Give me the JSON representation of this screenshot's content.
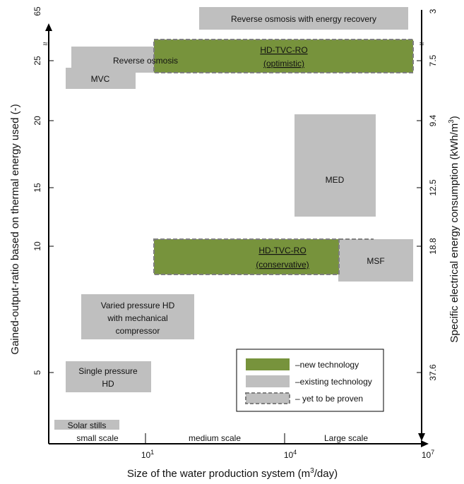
{
  "chart_data": {
    "type": "range-box",
    "x_axis": {
      "title_main": "Size of the water production system (m",
      "title_sup": "3",
      "title_tail": "/day)",
      "tick_bases": [
        "10",
        "10",
        "10"
      ],
      "tick_exps": [
        "1",
        "4",
        "7"
      ],
      "tick_values": [
        1,
        4,
        7
      ]
    },
    "y_left": {
      "title": "Gained-output-ratio based on thermal energy used (-)",
      "ticks": [
        "5",
        "10",
        "15",
        "20",
        "25",
        "65"
      ]
    },
    "y_right": {
      "title_main": "Specific electrical energy consumption (kWh/m",
      "title_sup": "3",
      "title_tail": ")",
      "ticks": [
        "37.6",
        "18.8",
        "12.5",
        "9.4",
        "7.5",
        "3"
      ]
    },
    "axis_break_symbol": "≈",
    "scale_labels": [
      "small scale",
      "medium scale",
      "Large scale"
    ],
    "regions": [
      {
        "id": "ro-er",
        "label": "Reverse osmosis with energy recovery",
        "kind": "existing",
        "x": [
          3.2,
          7.1
        ],
        "gor": [
          65,
          65
        ]
      },
      {
        "id": "ro",
        "label": "Reverse osmosis",
        "kind": "existing",
        "x": [
          -0.5,
          3.2
        ],
        "gor": [
          24.2,
          25.9
        ]
      },
      {
        "id": "mvc",
        "label": "MVC",
        "kind": "existing",
        "x": [
          -0.6,
          0.9
        ],
        "gor": [
          22.5,
          24.1
        ]
      },
      {
        "id": "med",
        "label": "MED",
        "kind": "existing",
        "x": [
          4.6,
          6.2
        ],
        "gor": [
          13.1,
          20.3
        ]
      },
      {
        "id": "msf",
        "label": "MSF",
        "kind": "existing",
        "x": [
          5.5,
          7.1
        ],
        "gor": [
          7.9,
          10.5
        ]
      },
      {
        "id": "vphd",
        "label": "Varied pressure HD with mechanical compressor",
        "kind": "existing",
        "x": [
          -0.3,
          2.7
        ],
        "gor": [
          5.8,
          9.0
        ]
      },
      {
        "id": "sphd",
        "label": "Single pressure HD",
        "kind": "existing",
        "x": [
          -0.6,
          1.4
        ],
        "gor": [
          2.3,
          4.5
        ]
      },
      {
        "id": "solar",
        "label": "Solar stills",
        "kind": "existing",
        "x": [
          -1.0,
          0.9
        ],
        "gor": [
          0.3,
          0.6
        ]
      },
      {
        "id": "hd-opt",
        "label": "HD-TVC-RO",
        "sublabel": "(optimistic)",
        "kind": "new-unproven",
        "x": [
          1.4,
          6.9
        ],
        "gor": [
          24.2,
          26.2
        ]
      },
      {
        "id": "hd-cons",
        "label": "HD-TVC-RO",
        "sublabel": "(conservative)",
        "kind": "new-unproven",
        "x": [
          1.4,
          5.3
        ],
        "gor": [
          7.9,
          10.5
        ]
      }
    ],
    "legend": {
      "placement": "bottom-right",
      "entries": [
        {
          "kind": "new",
          "label": "–new technology"
        },
        {
          "kind": "existing",
          "label": "–existing technology"
        },
        {
          "kind": "unproven",
          "label": "– yet to be proven"
        }
      ]
    },
    "colors": {
      "new": "#77933c",
      "existing": "#bfbfbf",
      "dashed": "#7f7f7f",
      "axis": "#000000"
    }
  }
}
